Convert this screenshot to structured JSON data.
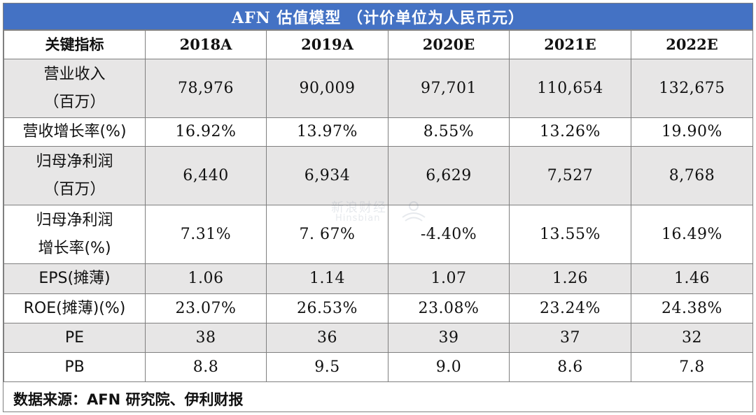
{
  "title": "AFN 估值模型 （计价单位为人民币元）",
  "columns": [
    "关键指标",
    "2018A",
    "2019A",
    "2020E",
    "2021E",
    "2022E"
  ],
  "rows": [
    {
      "label_lines": [
        "营业收入",
        "（百万）"
      ],
      "values": [
        "78,976",
        "90,009",
        "97,701",
        "110,654",
        "132,675"
      ]
    },
    {
      "label_lines": [
        "营收增长率(%)"
      ],
      "values": [
        "16.92%",
        "13.97%",
        "8.55%",
        "13.26%",
        "19.90%"
      ]
    },
    {
      "label_lines": [
        "归母净利润",
        "（百万）"
      ],
      "values": [
        "6,440",
        "6,934",
        "6,629",
        "7,527",
        "8,768"
      ]
    },
    {
      "label_lines": [
        "归母净利润",
        "增长率(%)"
      ],
      "values": [
        "7.31%",
        "7. 67%",
        "-4.40%",
        "13.55%",
        "16.49%"
      ]
    },
    {
      "label_lines": [
        "EPS(摊薄)"
      ],
      "values": [
        "1.06",
        "1.14",
        "1.07",
        "1.26",
        "1.46"
      ]
    },
    {
      "label_lines": [
        "ROE(摊薄)(%)"
      ],
      "values": [
        "23.07%",
        "26.53%",
        "23.08%",
        "23.24%",
        "24.38%"
      ]
    },
    {
      "label_lines": [
        "PE"
      ],
      "values": [
        "38",
        "36",
        "39",
        "37",
        "32"
      ]
    },
    {
      "label_lines": [
        "PB"
      ],
      "values": [
        "8.8",
        "9.5",
        "9.0",
        "8.6",
        "7.8"
      ]
    }
  ],
  "source": "数据来源：AFN 研究院、伊利财报",
  "watermark": {
    "line1": "新浪财经",
    "line2": "Hinsbian"
  },
  "colors": {
    "title_bg": "#4472c4",
    "shade_bg": "#e7e6e6",
    "border": "#7f7f7f"
  }
}
